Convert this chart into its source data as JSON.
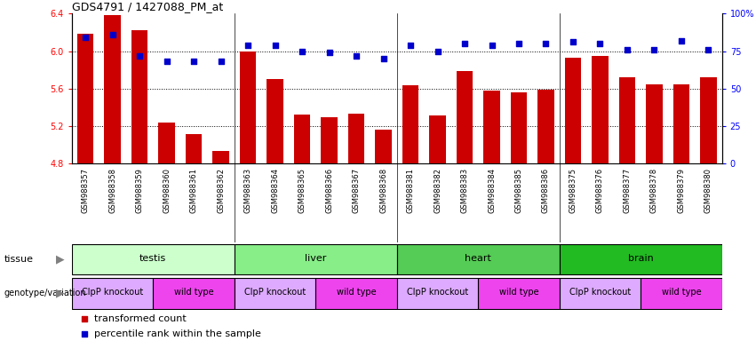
{
  "title": "GDS4791 / 1427088_PM_at",
  "samples": [
    "GSM988357",
    "GSM988358",
    "GSM988359",
    "GSM988360",
    "GSM988361",
    "GSM988362",
    "GSM988363",
    "GSM988364",
    "GSM988365",
    "GSM988366",
    "GSM988367",
    "GSM988368",
    "GSM988381",
    "GSM988382",
    "GSM988383",
    "GSM988384",
    "GSM988385",
    "GSM988386",
    "GSM988375",
    "GSM988376",
    "GSM988377",
    "GSM988378",
    "GSM988379",
    "GSM988380"
  ],
  "bar_values": [
    6.19,
    6.38,
    6.22,
    5.24,
    5.12,
    4.94,
    6.0,
    5.7,
    5.32,
    5.3,
    5.33,
    5.16,
    5.64,
    5.31,
    5.79,
    5.58,
    5.56,
    5.59,
    5.93,
    5.95,
    5.72,
    5.65,
    5.65,
    5.72
  ],
  "percentile_values": [
    84,
    86,
    72,
    68,
    68,
    68,
    79,
    79,
    75,
    74,
    72,
    70,
    79,
    75,
    80,
    79,
    80,
    80,
    81,
    80,
    76,
    76,
    82,
    76
  ],
  "bar_color": "#cc0000",
  "dot_color": "#0000cc",
  "ylim_left": [
    4.8,
    6.4
  ],
  "ylim_right": [
    0,
    100
  ],
  "yticks_left": [
    4.8,
    5.2,
    5.6,
    6.0,
    6.4
  ],
  "yticks_right": [
    0,
    25,
    50,
    75,
    100
  ],
  "ytick_labels_right": [
    "0",
    "25",
    "50",
    "75",
    "100%"
  ],
  "grid_lines": [
    5.2,
    5.6,
    6.0
  ],
  "tissue_groups": [
    {
      "label": "testis",
      "start": 0,
      "end": 5,
      "color": "#ccffcc"
    },
    {
      "label": "liver",
      "start": 6,
      "end": 11,
      "color": "#88ee88"
    },
    {
      "label": "heart",
      "start": 12,
      "end": 17,
      "color": "#55cc55"
    },
    {
      "label": "brain",
      "start": 18,
      "end": 23,
      "color": "#22bb22"
    }
  ],
  "genotype_groups": [
    {
      "label": "ClpP knockout",
      "start": 0,
      "end": 2,
      "color": "#ddaaff"
    },
    {
      "label": "wild type",
      "start": 3,
      "end": 5,
      "color": "#ee44ee"
    },
    {
      "label": "ClpP knockout",
      "start": 6,
      "end": 8,
      "color": "#ddaaff"
    },
    {
      "label": "wild type",
      "start": 9,
      "end": 11,
      "color": "#ee44ee"
    },
    {
      "label": "ClpP knockout",
      "start": 12,
      "end": 14,
      "color": "#ddaaff"
    },
    {
      "label": "wild type",
      "start": 15,
      "end": 17,
      "color": "#ee44ee"
    },
    {
      "label": "ClpP knockout",
      "start": 18,
      "end": 20,
      "color": "#ddaaff"
    },
    {
      "label": "wild type",
      "start": 21,
      "end": 23,
      "color": "#ee44ee"
    }
  ],
  "legend_items": [
    {
      "label": "transformed count",
      "color": "#cc0000"
    },
    {
      "label": "percentile rank within the sample",
      "color": "#0000cc"
    }
  ],
  "xaxis_bg": "#e8e8e8"
}
